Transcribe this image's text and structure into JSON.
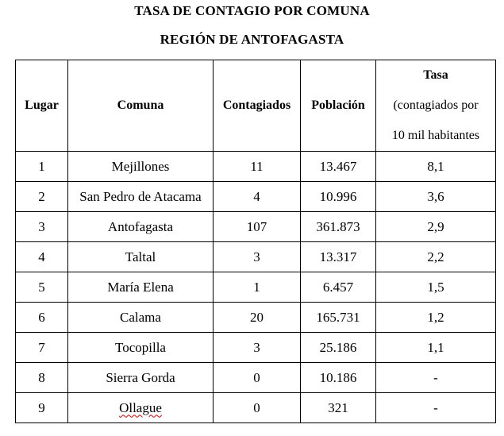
{
  "title_line1": "TASA DE CONTAGIO POR COMUNA",
  "title_line2": "REGIÓN DE ANTOFAGASTA",
  "headers": {
    "lugar": "Lugar",
    "comuna": "Comuna",
    "contagiados": "Contagiados",
    "poblacion": "Población",
    "tasa_line1": "Tasa",
    "tasa_line2": "(contagiados por",
    "tasa_line3": "10 mil habitantes"
  },
  "rows": [
    {
      "lugar": "1",
      "comuna": "Mejillones",
      "contagiados": "11",
      "poblacion": "13.467",
      "tasa": "8,1"
    },
    {
      "lugar": "2",
      "comuna": "San Pedro de Atacama",
      "contagiados": "4",
      "poblacion": "10.996",
      "tasa": "3,6"
    },
    {
      "lugar": "3",
      "comuna": "Antofagasta",
      "contagiados": "107",
      "poblacion": "361.873",
      "tasa": "2,9"
    },
    {
      "lugar": "4",
      "comuna": "Taltal",
      "contagiados": "3",
      "poblacion": "13.317",
      "tasa": "2,2"
    },
    {
      "lugar": "5",
      "comuna": "María Elena",
      "contagiados": "1",
      "poblacion": "6.457",
      "tasa": "1,5"
    },
    {
      "lugar": "6",
      "comuna": "Calama",
      "contagiados": "20",
      "poblacion": "165.731",
      "tasa": "1,2"
    },
    {
      "lugar": "7",
      "comuna": "Tocopilla",
      "contagiados": "3",
      "poblacion": "25.186",
      "tasa": "1,1"
    },
    {
      "lugar": "8",
      "comuna": "Sierra Gorda",
      "contagiados": "0",
      "poblacion": "10.186",
      "tasa": "-"
    },
    {
      "lugar": "9",
      "comuna": "Ollague",
      "contagiados": "0",
      "poblacion": "321",
      "tasa": "-"
    }
  ]
}
